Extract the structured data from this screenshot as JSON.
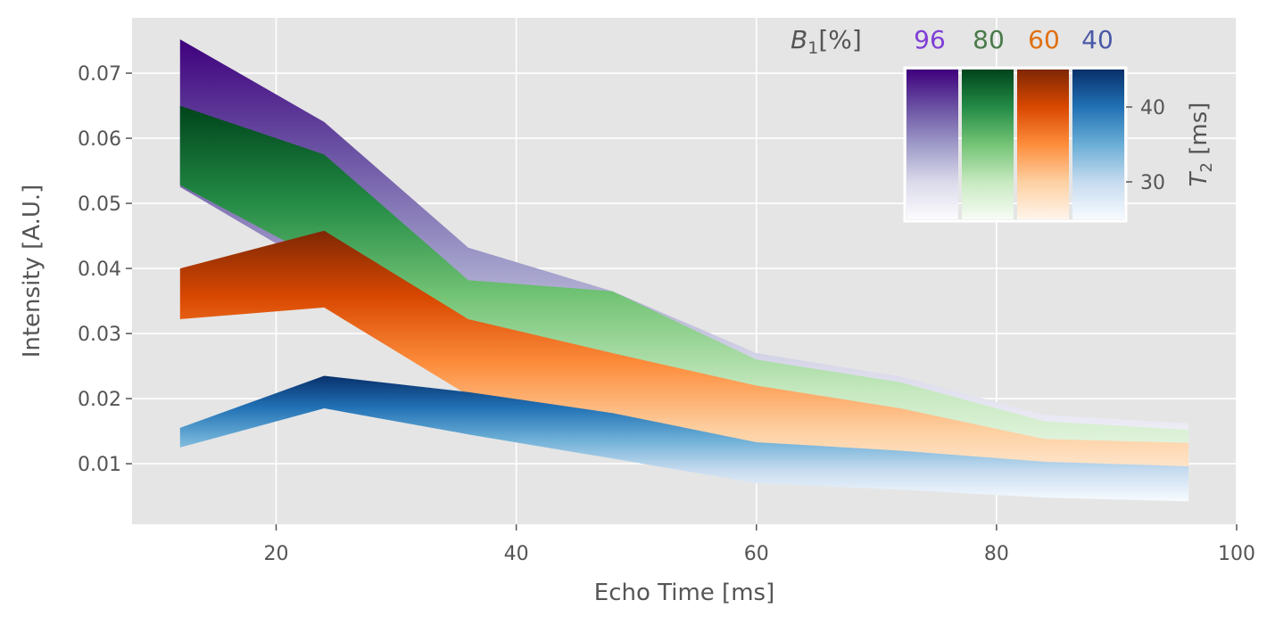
{
  "chart_data": {
    "type": "area",
    "xlabel": "Echo Time [ms]",
    "ylabel": "Intensity [A.U.]",
    "xlim": [
      8,
      100
    ],
    "ylim": [
      0.0007,
      0.0785
    ],
    "x_ticks": [
      20,
      40,
      60,
      80,
      100
    ],
    "y_ticks": [
      0.01,
      0.02,
      0.03,
      0.04,
      0.05,
      0.06,
      0.07
    ],
    "x_tick_labels": [
      "20",
      "40",
      "60",
      "80",
      "100"
    ],
    "y_tick_labels": [
      "0.01",
      "0.02",
      "0.03",
      "0.04",
      "0.05",
      "0.06",
      "0.07"
    ],
    "grid": true,
    "x": [
      12,
      24,
      36,
      48,
      60,
      72,
      84,
      96
    ],
    "series": [
      {
        "name": "96",
        "color": "#7f3fd6",
        "cmap": "Purples",
        "upper": [
          0.0752,
          0.0625,
          0.0432,
          0.0365,
          0.027,
          0.0234,
          0.0175,
          0.0162
        ],
        "lower": [
          0.0525,
          0.0395,
          0.0275,
          0.0222,
          0.0148,
          0.0128,
          0.0086,
          0.0078
        ]
      },
      {
        "name": "80",
        "color": "#4a7a4a",
        "cmap": "Greens",
        "upper": [
          0.065,
          0.0575,
          0.0382,
          0.0365,
          0.026,
          0.0225,
          0.0165,
          0.0152
        ],
        "lower": [
          0.0528,
          0.041,
          0.0215,
          0.019,
          0.0128,
          0.0108,
          0.007,
          0.0062
        ]
      },
      {
        "name": "60",
        "color": "#e07010",
        "cmap": "Oranges",
        "upper": [
          0.04,
          0.0458,
          0.0322,
          0.027,
          0.022,
          0.0185,
          0.0138,
          0.0132
        ],
        "lower": [
          0.0322,
          0.034,
          0.0205,
          0.0165,
          0.011,
          0.0085,
          0.005,
          0.0048
        ]
      },
      {
        "name": "40",
        "color": "#4a5aa8",
        "cmap": "Blues",
        "upper": [
          0.0155,
          0.0235,
          0.021,
          0.0178,
          0.0133,
          0.012,
          0.0103,
          0.0096
        ],
        "lower": [
          0.0125,
          0.0185,
          0.0145,
          0.0108,
          0.007,
          0.006,
          0.0048,
          0.0042
        ]
      }
    ],
    "legend": {
      "title": "B1[%]",
      "title_main": "B",
      "title_sub": "1",
      "title_rest": "[%]",
      "placement": "top-right",
      "colorbar_label": "T2 [ms]",
      "colorbar_label_main": "T",
      "colorbar_label_sub": "2",
      "colorbar_label_rest": " [ms]",
      "colorbar_ticks": [
        30,
        40
      ],
      "colorbar_tick_labels": [
        "30",
        "40"
      ],
      "colorbar_range": [
        25,
        45
      ]
    },
    "colormaps": {
      "Purples": [
        "#fcfbfd",
        "#dadaeb",
        "#9e9ac8",
        "#6a51a3",
        "#3f007d"
      ],
      "Greens": [
        "#f7fcf5",
        "#c7e9c0",
        "#74c476",
        "#238b45",
        "#00441b"
      ],
      "Oranges": [
        "#fff5eb",
        "#fdd0a2",
        "#fd8d3c",
        "#d94801",
        "#7f2704"
      ],
      "Blues": [
        "#f7fbff",
        "#c6dbef",
        "#6baed6",
        "#2171b5",
        "#08306b"
      ]
    }
  }
}
